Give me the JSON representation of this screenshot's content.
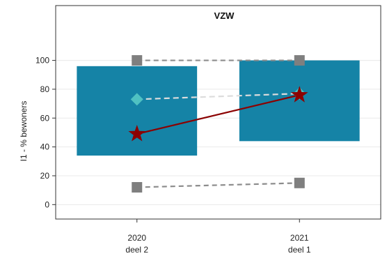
{
  "chart_data": {
    "type": "bar",
    "title": "VZW",
    "ylabel": "I1 - % bewoners",
    "xlabel": "",
    "ylim": [
      -10,
      138
    ],
    "yticks": [
      0,
      20,
      40,
      60,
      80,
      100
    ],
    "categories": [
      {
        "line1": "2020",
        "line2": "deel 2"
      },
      {
        "line1": "2021",
        "line2": "deel 1"
      }
    ],
    "grid": "horizontal",
    "colors": {
      "range_bar": "#1583a6",
      "max_marker": "#7f7f7f",
      "min_marker": "#7f7f7f",
      "max_line": "#8c8c8c",
      "min_line": "#8c8c8c",
      "mean_marker": "#4fc1c2",
      "mean_line": "#dcdcdc",
      "own_value": "#8b0000",
      "gridline": "#e9e9e9",
      "frame": "#333333"
    },
    "series": [
      {
        "role": "range",
        "values": [
          [
            34,
            96
          ],
          [
            44,
            100
          ]
        ]
      },
      {
        "role": "max",
        "values": [
          100,
          100
        ]
      },
      {
        "role": "min",
        "values": [
          12,
          15
        ]
      },
      {
        "role": "mean",
        "values": [
          73,
          77
        ]
      },
      {
        "role": "own-value",
        "values": [
          49,
          76
        ]
      }
    ]
  }
}
